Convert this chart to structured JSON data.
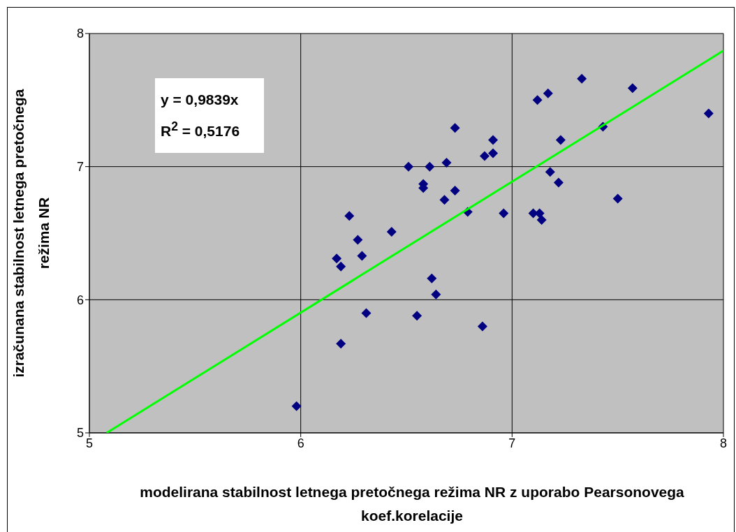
{
  "chart_data": {
    "type": "scatter",
    "xlabel": "modelirana stabilnost letnega pretočnega režima NR z uporabo Pearsonovega koef.korelacije",
    "ylabel": "izračunana stabilnost letnega pretočnega režima NR",
    "annotations": [
      "y = 0,9839x",
      "R$^{2}$ = 0,5176"
    ],
    "xlim": [
      5,
      8
    ],
    "xticks": [
      5,
      6,
      7,
      8
    ],
    "ylim": [
      5,
      8
    ],
    "yticks": [
      5,
      6,
      7,
      8
    ],
    "grid": true,
    "marker": "diamond",
    "series": [
      {
        "color": "#000080",
        "x": [
          5.98,
          6.17,
          6.19,
          6.23,
          6.27,
          6.29,
          6.31,
          6.19,
          6.43,
          6.51,
          6.61,
          6.58,
          6.58,
          6.55,
          6.62,
          6.64,
          6.68,
          6.69,
          6.73,
          6.73,
          6.79,
          6.87,
          6.91,
          6.91,
          6.96,
          6.86,
          7.1,
          7.12,
          7.17,
          7.13,
          7.14,
          7.18,
          7.22,
          7.23,
          7.33,
          7.43,
          7.5,
          7.57,
          7.93
        ],
        "values": [
          5.2,
          6.31,
          6.25,
          6.63,
          6.45,
          6.33,
          5.9,
          5.67,
          6.51,
          7.0,
          7.0,
          6.87,
          6.84,
          5.88,
          6.16,
          6.04,
          6.75,
          7.03,
          6.82,
          7.29,
          6.66,
          7.08,
          7.2,
          7.1,
          6.65,
          5.8,
          6.65,
          7.5,
          7.55,
          6.65,
          6.6,
          6.96,
          6.88,
          7.2,
          7.66,
          7.3,
          6.76,
          7.59,
          7.4
        ]
      },
      {
        "type": "line",
        "color": "#00ff00",
        "marker": "none",
        "x": [
          5.082,
          8
        ],
        "values": [
          5.0,
          7.871
        ]
      }
    ]
  }
}
